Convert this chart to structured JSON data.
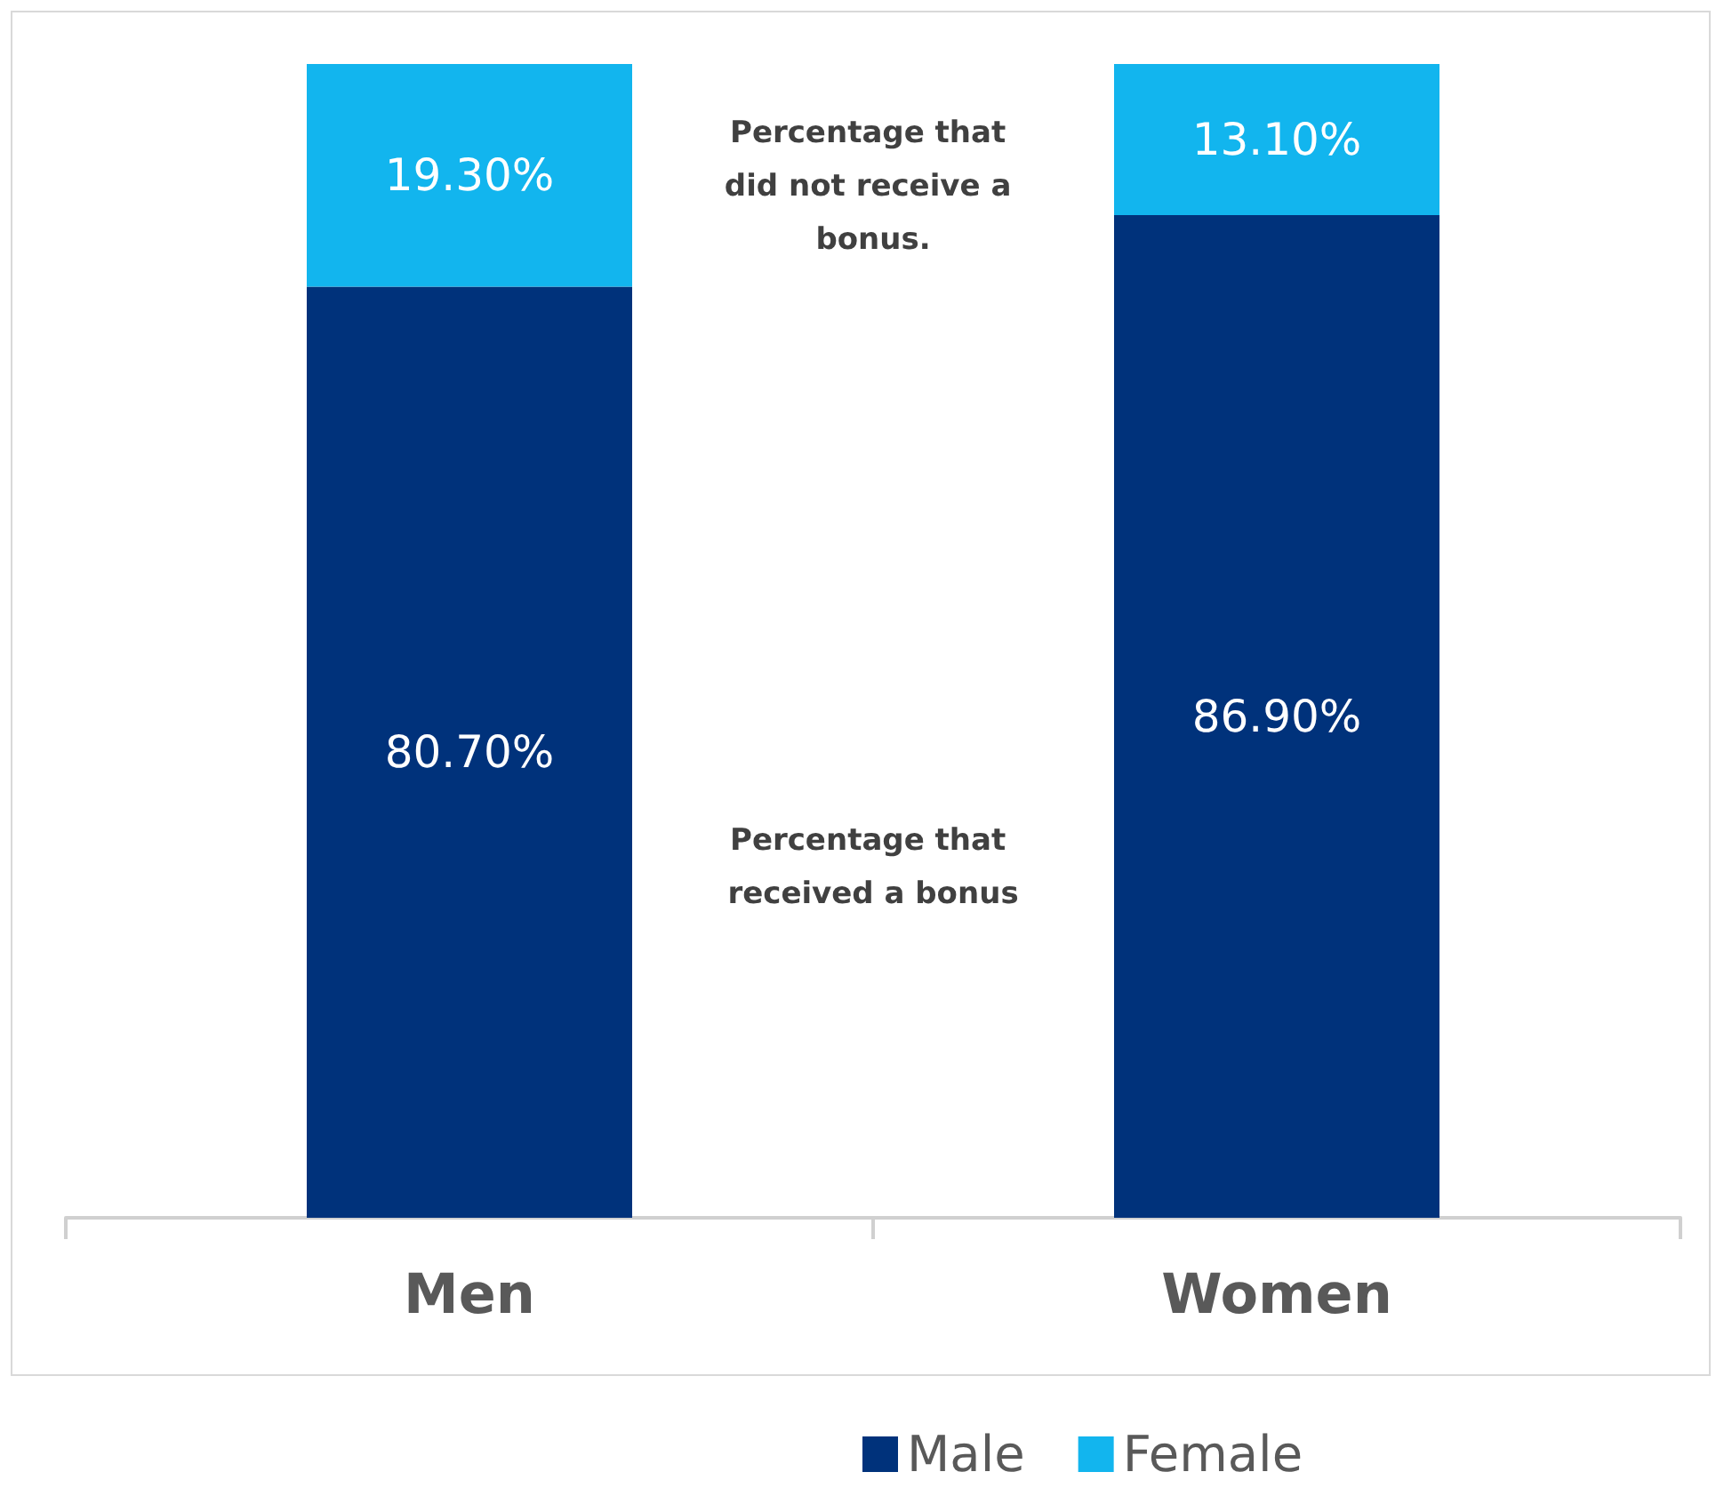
{
  "chart_data": {
    "type": "bar",
    "stacked": true,
    "categories": [
      "Men",
      "Women"
    ],
    "series": [
      {
        "name": "Male",
        "color": "#00327b",
        "values": [
          80.7,
          86.9
        ],
        "value_labels": [
          "80.70%",
          "86.90%"
        ]
      },
      {
        "name": "Female",
        "color": "#12b5ee",
        "values": [
          19.3,
          13.1
        ],
        "value_labels": [
          "19.30%",
          "13.10%"
        ]
      }
    ],
    "annotations": [
      "Percentage that did not receive a bonus.",
      "Percentage that received a bonus"
    ],
    "legend": "bottom"
  }
}
